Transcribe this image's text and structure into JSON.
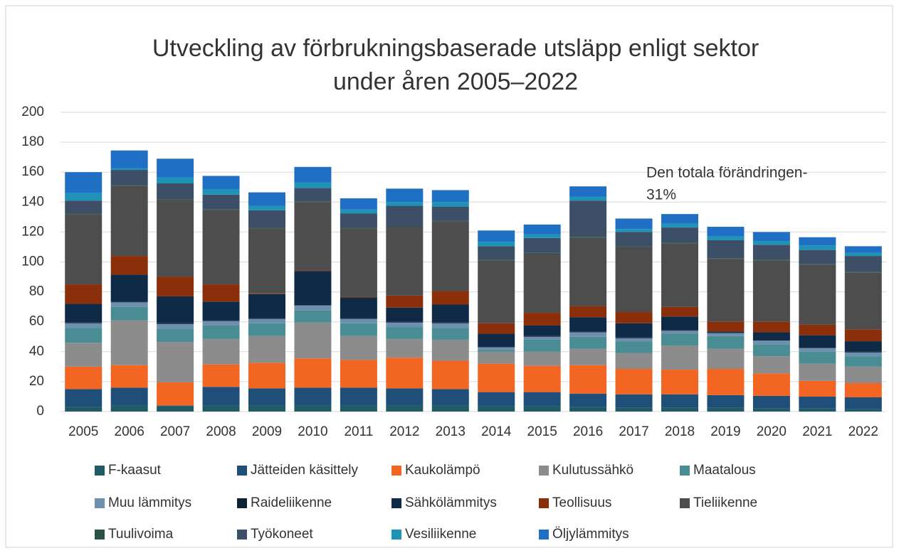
{
  "chart_data": {
    "type": "stacked_bar",
    "title": [
      "Utveckling av förbrukningsbaserade utsläpp enligt sektor",
      "under åren 2005–2022"
    ],
    "annotation": [
      "Den totala förändringen-",
      "31%"
    ],
    "categories": [
      "2005",
      "2006",
      "2007",
      "2008",
      "2009",
      "2010",
      "2011",
      "2012",
      "2013",
      "2014",
      "2015",
      "2016",
      "2017",
      "2018",
      "2019",
      "2020",
      "2021",
      "2022"
    ],
    "ylim": [
      0,
      200
    ],
    "yticks": [
      0,
      20,
      40,
      60,
      80,
      100,
      120,
      140,
      160,
      180,
      200
    ],
    "grid": true,
    "legend": "bottom",
    "series": [
      {
        "name": "F-kaasut",
        "color": "#1f5b66",
        "values": [
          3,
          4,
          3.5,
          4,
          4,
          4,
          4,
          4,
          4,
          3.5,
          3.5,
          3,
          2.5,
          2.5,
          2.5,
          2,
          2,
          1.5
        ]
      },
      {
        "name": "Jätteiden käsittely",
        "color": "#1f4e79",
        "values": [
          12,
          12,
          0.5,
          12.5,
          11.5,
          12,
          12,
          11.5,
          11,
          9.5,
          9.5,
          9,
          9,
          9,
          8.5,
          8.5,
          8,
          8
        ]
      },
      {
        "name": "Kaukolämpö",
        "color": "#f26522",
        "values": [
          15,
          15,
          15.5,
          15,
          17,
          19.5,
          18.5,
          20.5,
          19,
          19,
          17.5,
          19,
          17,
          16.5,
          17.5,
          15,
          10.5,
          9.5
        ]
      },
      {
        "name": "Kulutussähkö",
        "color": "#8c8c8c",
        "values": [
          16,
          30,
          27,
          17,
          18,
          24,
          16,
          12.5,
          14,
          8,
          9.5,
          11,
          10.5,
          16,
          13.5,
          11.5,
          11.5,
          11
        ]
      },
      {
        "name": "Maatalous",
        "color": "#4a8c94",
        "values": [
          10,
          9,
          9,
          9,
          8.5,
          8,
          8.5,
          8,
          8,
          1.5,
          8,
          8,
          8,
          8,
          8.5,
          8,
          8,
          7
        ]
      },
      {
        "name": "Muu lämmitys",
        "color": "#6f8fb0",
        "values": [
          3,
          3,
          3,
          3,
          3,
          3.5,
          3,
          3,
          3,
          1.5,
          2,
          3,
          2,
          2,
          2,
          2.5,
          2.5,
          2.5
        ]
      },
      {
        "name": "Raideliikenne",
        "color": "#0d2233",
        "values": [
          0.5,
          0.5,
          0.5,
          0.5,
          0.5,
          0.5,
          0.5,
          0.5,
          0.5,
          0.5,
          0.5,
          0.5,
          0.5,
          0.5,
          0.5,
          0.5,
          0.5,
          0.5
        ]
      },
      {
        "name": "Sähkölämmitys",
        "color": "#0e2a47",
        "values": [
          12.5,
          18,
          18,
          12.5,
          16,
          22.5,
          13.5,
          9.5,
          12,
          8.5,
          7,
          9.5,
          9.5,
          9,
          0.5,
          5,
          8,
          7
        ]
      },
      {
        "name": "Teollisuus",
        "color": "#8b2f0b",
        "values": [
          13,
          12.5,
          13,
          11.5,
          0.5,
          0.5,
          0.5,
          8,
          9,
          7,
          8.5,
          7.5,
          7.5,
          6.5,
          6.5,
          7,
          7,
          8
        ]
      },
      {
        "name": "Tieliikenne",
        "color": "#4d4d4d",
        "values": [
          47,
          47,
          52,
          49.5,
          43.5,
          45.5,
          46,
          46,
          46.5,
          42,
          39.5,
          45.5,
          43.5,
          42.5,
          42,
          41,
          40,
          38
        ]
      },
      {
        "name": "Tuulivoima",
        "color": "#2a5248",
        "values": [
          0.5,
          0.5,
          0.5,
          0.5,
          0.5,
          0.5,
          0.5,
          0.5,
          0.5,
          0.5,
          0.5,
          0.5,
          0.5,
          0.5,
          0.5,
          0.5,
          0.5,
          0.5
        ]
      },
      {
        "name": "Työkoneet",
        "color": "#3c4f66",
        "values": [
          8.5,
          10,
          10,
          10,
          11.5,
          9,
          9.5,
          13.5,
          9.5,
          9,
          10,
          24.5,
          9.5,
          10,
          12,
          10,
          9.5,
          10.5
        ]
      },
      {
        "name": "Vesiliikenne",
        "color": "#1f93b5",
        "values": [
          5,
          1,
          4,
          3.5,
          3,
          3.5,
          2.5,
          2.5,
          3,
          3,
          2.5,
          2.5,
          2,
          2.5,
          2.5,
          2.5,
          3,
          2
        ]
      },
      {
        "name": "Öljylämmitys",
        "color": "#1f6fc5",
        "values": [
          14,
          12,
          12.5,
          9,
          9,
          10.5,
          7.5,
          9,
          8,
          7.5,
          6.5,
          7,
          7,
          6.5,
          6.5,
          6,
          5.5,
          4.5
        ]
      }
    ]
  }
}
